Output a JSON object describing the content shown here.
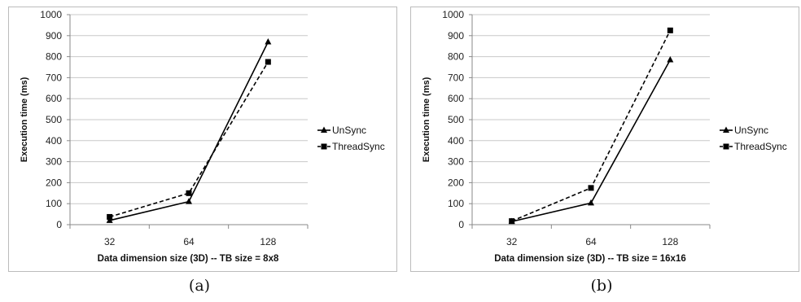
{
  "chart_data": [
    {
      "type": "line",
      "caption": "(a)",
      "categories": [
        "32",
        "64",
        "128"
      ],
      "xlabel": "Data dimension size (3D) -- TB size = 8x8",
      "ylabel": "Execution time (ms)",
      "ylim": [
        0,
        1000
      ],
      "yticks": [
        "0",
        "100",
        "200",
        "300",
        "400",
        "500",
        "600",
        "700",
        "800",
        "900",
        "1000"
      ],
      "grid": true,
      "legend_position": "right",
      "series": [
        {
          "name": "UnSync",
          "values": [
            20,
            110,
            870
          ],
          "marker": "triangle",
          "line": "solid"
        },
        {
          "name": "ThreadSync",
          "values": [
            37,
            150,
            775
          ],
          "marker": "square",
          "line": "dashed"
        }
      ]
    },
    {
      "type": "line",
      "caption": "(b)",
      "categories": [
        "32",
        "64",
        "128"
      ],
      "xlabel": "Data dimension size (3D) -- TB size = 16x16",
      "ylabel": "Execution time (ms)",
      "ylim": [
        0,
        1000
      ],
      "yticks": [
        "0",
        "100",
        "200",
        "300",
        "400",
        "500",
        "600",
        "700",
        "800",
        "900",
        "1000"
      ],
      "grid": true,
      "legend_position": "right",
      "series": [
        {
          "name": "UnSync",
          "values": [
            15,
            103,
            785
          ],
          "marker": "triangle",
          "line": "solid"
        },
        {
          "name": "ThreadSync",
          "values": [
            17,
            175,
            925
          ],
          "marker": "square",
          "line": "dashed"
        }
      ]
    }
  ]
}
